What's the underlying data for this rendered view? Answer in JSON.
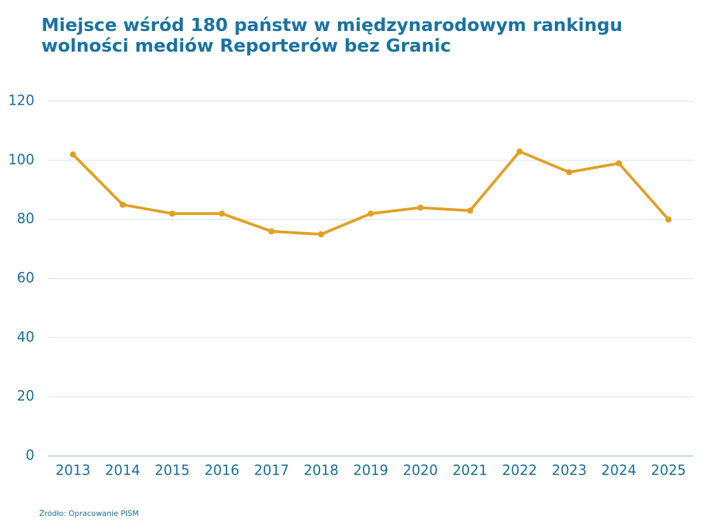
{
  "chart_data": {
    "type": "line",
    "title": "Miejsce wśród 180 państw w międzynarodowym rankingu wolności mediów Reporterów bez Granic",
    "source": "Źródło: Opracowanie PISM",
    "categories": [
      "2013",
      "2014",
      "2015",
      "2016",
      "2017",
      "2018",
      "2019",
      "2020",
      "2021",
      "2022",
      "2023",
      "2024",
      "2025"
    ],
    "values": [
      102,
      85,
      82,
      82,
      76,
      75,
      82,
      84,
      83,
      103,
      96,
      99,
      80
    ],
    "color": "#e0a024",
    "ylim": [
      0,
      120
    ],
    "yticks": [
      0,
      20,
      40,
      60,
      80,
      100,
      120
    ],
    "grid": true
  }
}
